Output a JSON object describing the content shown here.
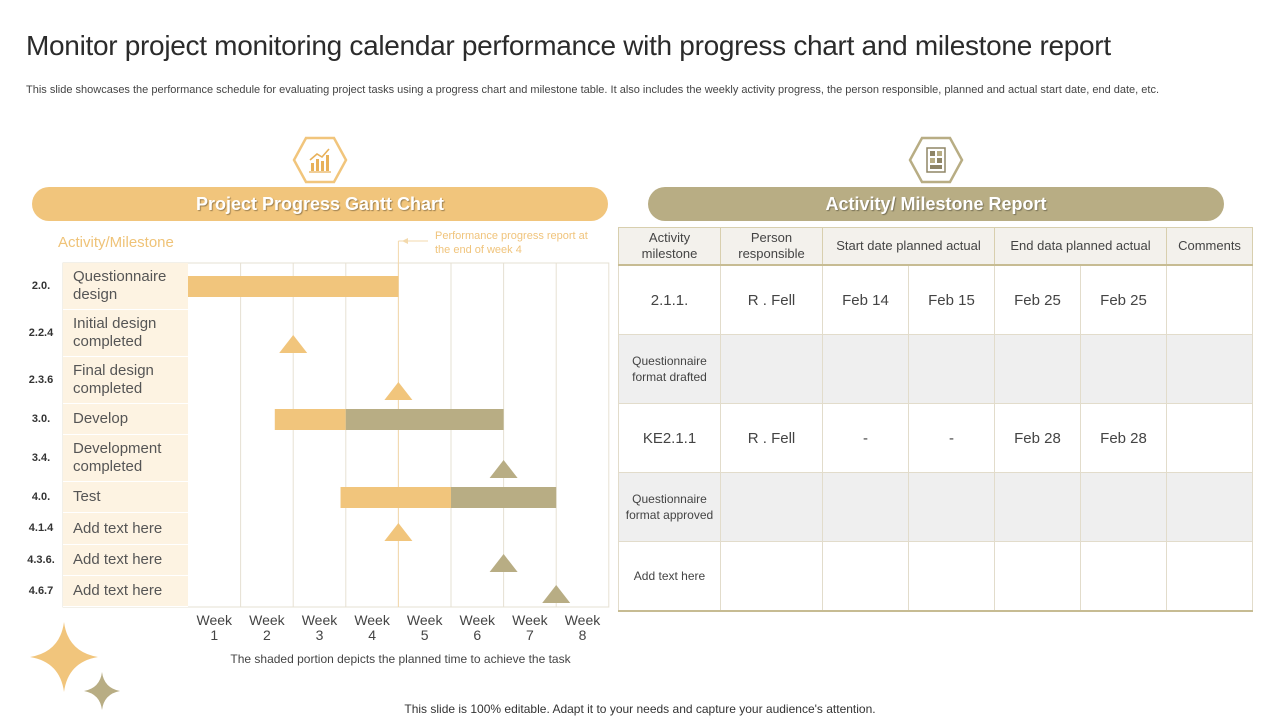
{
  "title": "Monitor project monitoring calendar performance with progress chart and milestone report",
  "subtitle": "This slide showcases the performance schedule for evaluating project tasks using a progress chart and milestone table. It also includes the weekly activity  progress, the person responsible, planned and actual start date, end date, etc.",
  "left_panel": {
    "header": "Project Progress Gantt Chart",
    "activity_heading": "Activity/Milestone",
    "annotation": "Performance progress report at the end of week 4",
    "note": "The shaded portion depicts the planned time to achieve the task"
  },
  "right_panel": {
    "header": "Activity/ Milestone Report",
    "columns": [
      "Activity milestone",
      "Person responsible",
      "Start date planned actual",
      "End data planned actual",
      "Comments"
    ],
    "rows": [
      [
        "2.1.1.",
        "R . Fell",
        "Feb 14",
        "Feb 15",
        "Feb 25",
        "Feb 25",
        ""
      ],
      [
        "Questionnaire format  drafted",
        "",
        "",
        "",
        "",
        "",
        ""
      ],
      [
        "KE2.1.1",
        "R . Fell",
        "-",
        "-",
        "Feb 28",
        "Feb 28",
        ""
      ],
      [
        "Questionnaire format approved",
        "",
        "",
        "",
        "",
        "",
        ""
      ],
      [
        "Add text here",
        "",
        "",
        "",
        "",
        "",
        ""
      ]
    ]
  },
  "footer": "This slide is 100% editable. Adapt it to your needs and capture your audience's attention.",
  "colors": {
    "gold": "#f1c57c",
    "olive": "#b8ad84",
    "label_bg": "#fdf3e2"
  },
  "icons": [
    "growth-chart-icon",
    "report-grid-icon",
    "sparkle-star-icon"
  ],
  "chart_data": {
    "type": "gantt",
    "x_ticks": [
      "Week 1",
      "Week 2",
      "Week 3",
      "Week 4",
      "Week 5",
      "Week 6",
      "Week 7",
      "Week 8"
    ],
    "tasks": [
      {
        "id": "2.0.",
        "label": "Questionnaire design",
        "kind": "bar",
        "planned": [
          0.0,
          4.0
        ],
        "actual": null
      },
      {
        "id": "2.2.4",
        "label": "Initial design completed",
        "kind": "milestone",
        "at": 2.0,
        "color": "gold"
      },
      {
        "id": "2.3.6",
        "label": "Final design completed",
        "kind": "milestone",
        "at": 4.0,
        "color": "gold"
      },
      {
        "id": "3.0.",
        "label": "Develop",
        "kind": "bar",
        "planned": [
          1.65,
          3.0
        ],
        "actual": [
          3.0,
          6.0
        ]
      },
      {
        "id": "3.4.",
        "label": "Development completed",
        "kind": "milestone",
        "at": 6.0,
        "color": "olive"
      },
      {
        "id": "4.0.",
        "label": "Test",
        "kind": "bar",
        "planned": [
          2.9,
          5.0
        ],
        "actual": [
          5.0,
          7.0
        ]
      },
      {
        "id": "4.1.4",
        "label": "Add text here",
        "kind": "milestone",
        "at": 4.0,
        "color": "gold"
      },
      {
        "id": "4.3.6.",
        "label": "Add text here",
        "kind": "milestone",
        "at": 6.0,
        "color": "olive"
      },
      {
        "id": "4.6.7",
        "label": "Add text here",
        "kind": "milestone",
        "at": 7.0,
        "color": "olive"
      }
    ],
    "progress_marker_week": 4.0
  }
}
